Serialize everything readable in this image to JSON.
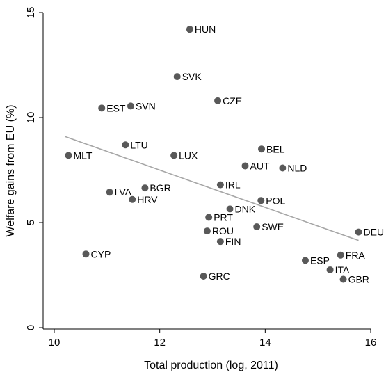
{
  "chart_data": {
    "type": "scatter",
    "title": "",
    "xlabel": "Total production (log, 2011)",
    "ylabel": "Welfare gains from EU (%)",
    "xlim": [
      10,
      16
    ],
    "ylim": [
      0,
      15
    ],
    "xticks": [
      "10",
      "12",
      "14",
      "16"
    ],
    "yticks": [
      "0",
      "5",
      "10",
      "15"
    ],
    "grid": false,
    "colors": {
      "point": "#595959",
      "fit_line": "#a6a6a6",
      "axis": "#000000"
    },
    "points": [
      {
        "label": "HUN",
        "x": 12.57,
        "y": 14.2
      },
      {
        "label": "SVK",
        "x": 12.33,
        "y": 11.95
      },
      {
        "label": "EST",
        "x": 10.9,
        "y": 10.45
      },
      {
        "label": "SVN",
        "x": 11.45,
        "y": 10.55
      },
      {
        "label": "CZE",
        "x": 13.1,
        "y": 10.8
      },
      {
        "label": "LTU",
        "x": 11.35,
        "y": 8.7
      },
      {
        "label": "MLT",
        "x": 10.27,
        "y": 8.2
      },
      {
        "label": "LUX",
        "x": 12.27,
        "y": 8.2
      },
      {
        "label": "BEL",
        "x": 13.93,
        "y": 8.5
      },
      {
        "label": "AUT",
        "x": 13.62,
        "y": 7.7
      },
      {
        "label": "NLD",
        "x": 14.33,
        "y": 7.6
      },
      {
        "label": "IRL",
        "x": 13.15,
        "y": 6.8
      },
      {
        "label": "LVA",
        "x": 11.05,
        "y": 6.45
      },
      {
        "label": "BGR",
        "x": 11.72,
        "y": 6.65
      },
      {
        "label": "HRV",
        "x": 11.48,
        "y": 6.1
      },
      {
        "label": "POL",
        "x": 13.92,
        "y": 6.05
      },
      {
        "label": "DNK",
        "x": 13.33,
        "y": 5.65
      },
      {
        "label": "PRT",
        "x": 12.93,
        "y": 5.25
      },
      {
        "label": "ROU",
        "x": 12.9,
        "y": 4.6
      },
      {
        "label": "SWE",
        "x": 13.84,
        "y": 4.8
      },
      {
        "label": "FIN",
        "x": 13.15,
        "y": 4.1
      },
      {
        "label": "CYP",
        "x": 10.6,
        "y": 3.5
      },
      {
        "label": "DEU",
        "x": 15.77,
        "y": 4.55
      },
      {
        "label": "FRA",
        "x": 15.43,
        "y": 3.45
      },
      {
        "label": "ESP",
        "x": 14.76,
        "y": 3.2
      },
      {
        "label": "ITA",
        "x": 15.23,
        "y": 2.75
      },
      {
        "label": "GBR",
        "x": 15.48,
        "y": 2.3
      },
      {
        "label": "GRC",
        "x": 12.83,
        "y": 2.45
      }
    ],
    "fit_line": {
      "x": [
        10.2,
        15.77
      ],
      "y": [
        9.1,
        4.15
      ]
    }
  }
}
